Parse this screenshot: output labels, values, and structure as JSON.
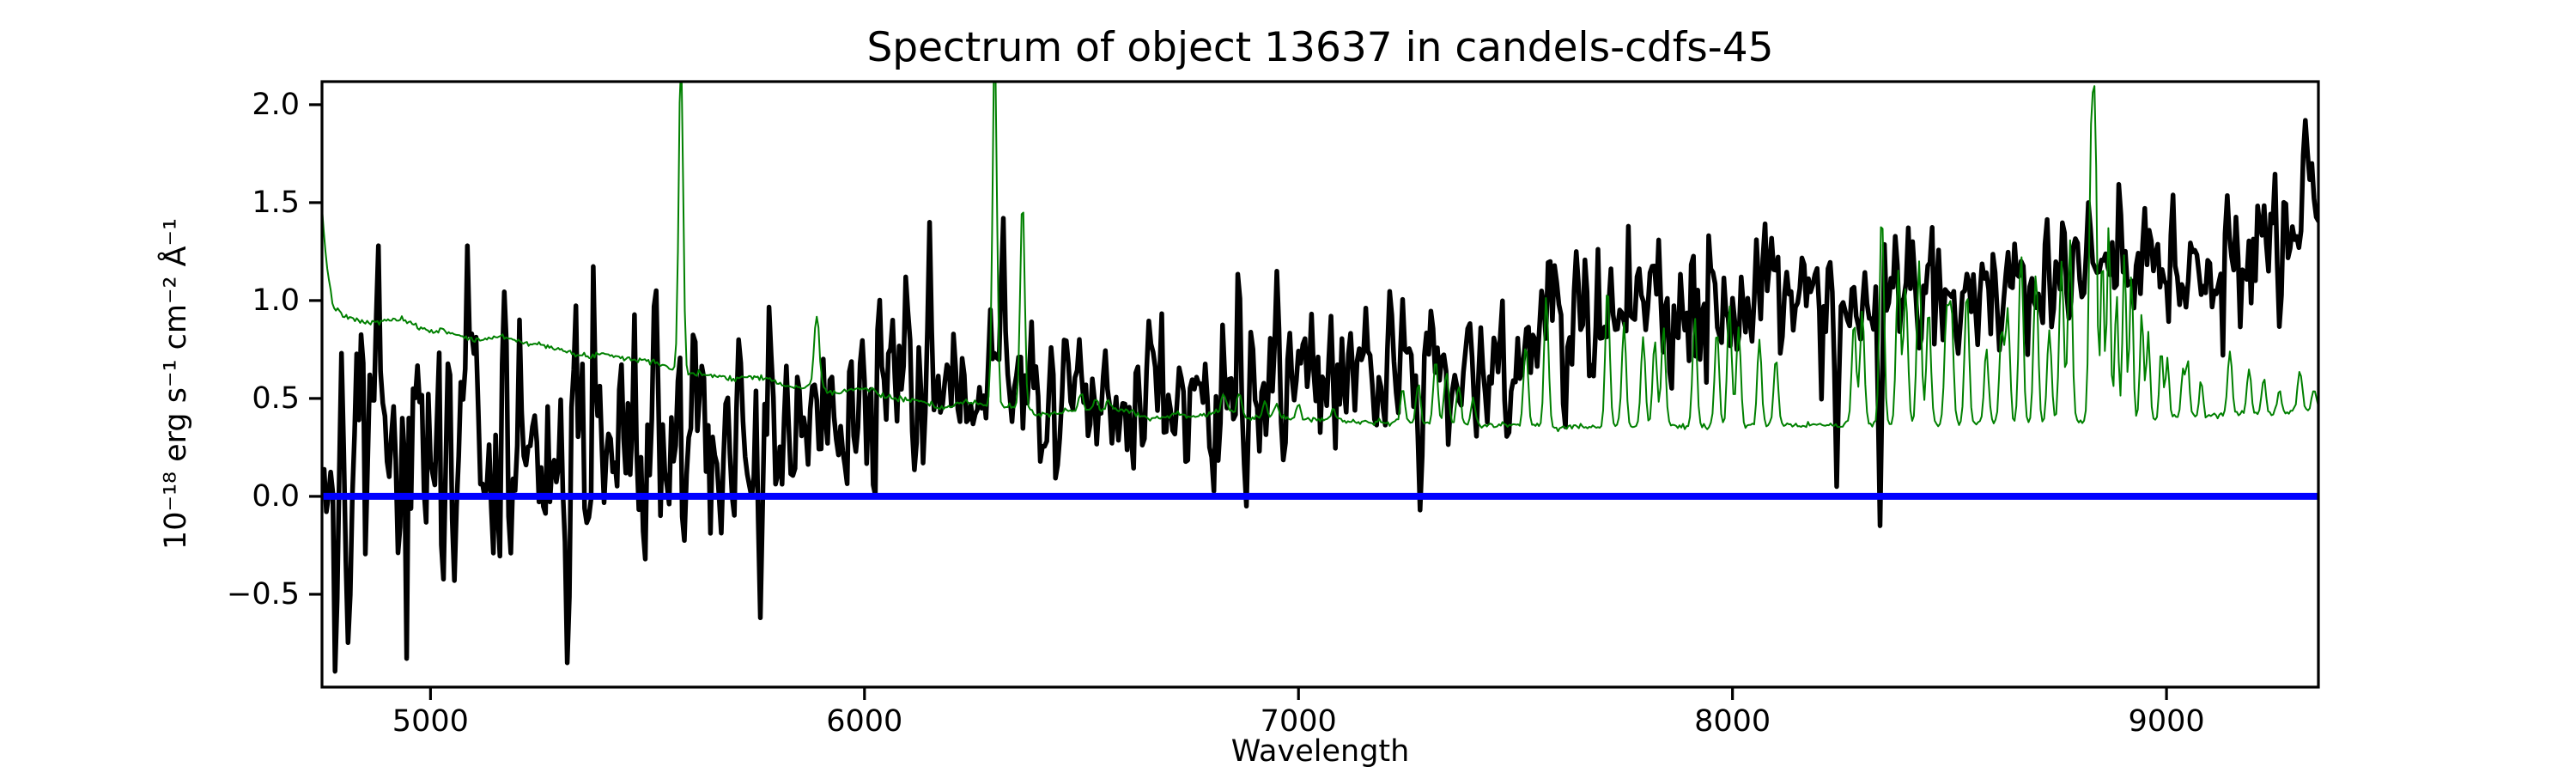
{
  "chart_data": {
    "type": "line",
    "title": "Spectrum of object 13637 in candels-cdfs-45",
    "xlabel": "Wavelength",
    "ylabel": "10⁻¹⁸ erg s⁻¹ cm⁻² Å⁻¹",
    "xlim": [
      4750,
      9350
    ],
    "ylim": [
      -0.974,
      2.118
    ],
    "grid": false,
    "legend": null,
    "background": "#ffffff",
    "frame_color": "#000000",
    "xticks": [
      {
        "value": 5000,
        "label": "5000"
      },
      {
        "value": 6000,
        "label": "6000"
      },
      {
        "value": 7000,
        "label": "7000"
      },
      {
        "value": 8000,
        "label": "8000"
      },
      {
        "value": 9000,
        "label": "9000"
      }
    ],
    "yticks": [
      {
        "value": -0.5,
        "label": "−0.5"
      },
      {
        "value": 0.0,
        "label": "0.0"
      },
      {
        "value": 0.5,
        "label": "0.5"
      },
      {
        "value": 1.0,
        "label": "1.0"
      },
      {
        "value": 1.5,
        "label": "1.5"
      },
      {
        "value": 2.0,
        "label": "2.0"
      }
    ],
    "series": [
      {
        "name": "observed-flux-black",
        "color": "#000000",
        "line_width": 5.5,
        "step_angstrom": 5,
        "model": {
          "kind": "noisy-continuum",
          "seed": 42,
          "continuum": [
            [
              4750,
              0.2
            ],
            [
              4900,
              0.26
            ],
            [
              5100,
              0.24
            ],
            [
              5300,
              0.2
            ],
            [
              5500,
              0.26
            ],
            [
              5700,
              0.33
            ],
            [
              5900,
              0.43
            ],
            [
              6100,
              0.52
            ],
            [
              6300,
              0.5
            ],
            [
              6500,
              0.5
            ],
            [
              6700,
              0.52
            ],
            [
              6900,
              0.5
            ],
            [
              7100,
              0.53
            ],
            [
              7300,
              0.58
            ],
            [
              7500,
              0.7
            ],
            [
              7700,
              0.86
            ],
            [
              7900,
              0.93
            ],
            [
              8050,
              1.0
            ],
            [
              8200,
              1.05
            ],
            [
              8350,
              1.0
            ],
            [
              8500,
              1.05
            ],
            [
              8700,
              1.1
            ],
            [
              8900,
              1.1
            ],
            [
              9100,
              1.16
            ],
            [
              9250,
              1.28
            ],
            [
              9350,
              1.5
            ]
          ],
          "noise_sigma": [
            [
              4750,
              0.4
            ],
            [
              5000,
              0.4
            ],
            [
              5300,
              0.37
            ],
            [
              5600,
              0.3
            ],
            [
              5900,
              0.25
            ],
            [
              6200,
              0.21
            ],
            [
              6600,
              0.19
            ],
            [
              7000,
              0.2
            ],
            [
              7400,
              0.2
            ],
            [
              7800,
              0.21
            ],
            [
              8200,
              0.18
            ],
            [
              8600,
              0.17
            ],
            [
              9000,
              0.17
            ],
            [
              9350,
              0.22
            ]
          ],
          "features": [
            [
              4750,
              0.08,
              3
            ],
            [
              4880,
              1.28,
              4
            ],
            [
              5085,
              1.28,
              4
            ],
            [
              5315,
              -0.85,
              4
            ],
            [
              5520,
              1.05,
              4
            ],
            [
              5760,
              -0.62,
              4
            ],
            [
              6150,
              1.4,
              4
            ],
            [
              6320,
              1.42,
              4
            ],
            [
              6880,
              -0.05,
              4
            ],
            [
              6950,
              1.15,
              4
            ],
            [
              7280,
              -0.07,
              4
            ],
            [
              7640,
              1.25,
              4
            ],
            [
              8240,
              0.05,
              4
            ],
            [
              8340,
              -0.15,
              4
            ],
            [
              8820,
              1.5,
              4
            ],
            [
              9320,
              1.92,
              5
            ],
            [
              9348,
              1.4,
              3
            ]
          ]
        }
      },
      {
        "name": "noise-sky-spectrum-green",
        "color": "#008000",
        "line_width": 2,
        "step_angstrom": 4,
        "model": {
          "kind": "baseline-with-spikes",
          "seed": 7,
          "baseline": [
            [
              4750,
              1.47
            ],
            [
              4762,
              1.18
            ],
            [
              4775,
              0.99
            ],
            [
              4800,
              0.92
            ],
            [
              4850,
              0.9
            ],
            [
              4950,
              0.87
            ],
            [
              5050,
              0.84
            ],
            [
              5150,
              0.8
            ],
            [
              5250,
              0.77
            ],
            [
              5350,
              0.74
            ],
            [
              5450,
              0.7
            ],
            [
              5550,
              0.66
            ],
            [
              5650,
              0.62
            ],
            [
              5750,
              0.59
            ],
            [
              5850,
              0.57
            ],
            [
              5950,
              0.54
            ],
            [
              6050,
              0.51
            ],
            [
              6150,
              0.48
            ],
            [
              6250,
              0.46
            ],
            [
              6400,
              0.44
            ],
            [
              6550,
              0.43
            ],
            [
              6700,
              0.42
            ],
            [
              6850,
              0.41
            ],
            [
              7000,
              0.4
            ],
            [
              7150,
              0.38
            ],
            [
              7300,
              0.37
            ],
            [
              7500,
              0.36
            ],
            [
              7700,
              0.355
            ],
            [
              7900,
              0.355
            ],
            [
              8100,
              0.36
            ],
            [
              8300,
              0.365
            ],
            [
              8500,
              0.37
            ],
            [
              8700,
              0.375
            ],
            [
              8900,
              0.39
            ],
            [
              9100,
              0.41
            ],
            [
              9250,
              0.42
            ],
            [
              9350,
              0.45
            ]
          ],
          "spikes": [
            [
              5577,
              2.3,
              5
            ],
            [
              5890,
              0.93,
              6
            ],
            [
              6300,
              2.3,
              5
            ],
            [
              6364,
              1.52,
              5
            ],
            [
              6499,
              0.52,
              5
            ],
            [
              6533,
              0.5,
              5
            ],
            [
              6562,
              0.48,
              5
            ],
            [
              6828,
              0.5,
              5
            ],
            [
              6864,
              0.52,
              5
            ],
            [
              6923,
              0.48,
              5
            ],
            [
              6949,
              0.47,
              5
            ],
            [
              7000,
              0.46,
              5
            ],
            [
              7080,
              0.44,
              5
            ],
            [
              7240,
              0.55,
              5
            ],
            [
              7276,
              0.58,
              5
            ],
            [
              7316,
              0.7,
              5
            ],
            [
              7341,
              0.64,
              5
            ],
            [
              7369,
              0.56,
              5
            ],
            [
              7402,
              0.5,
              5
            ],
            [
              7524,
              0.78,
              5
            ],
            [
              7571,
              1.02,
              5
            ],
            [
              7712,
              1.08,
              5
            ],
            [
              7750,
              0.88,
              5
            ],
            [
              7794,
              0.82,
              5
            ],
            [
              7821,
              0.8,
              5
            ],
            [
              7841,
              0.86,
              5
            ],
            [
              7913,
              0.92,
              5
            ],
            [
              7964,
              0.85,
              5
            ],
            [
              7993,
              0.98,
              5
            ],
            [
              8014,
              0.86,
              5
            ],
            [
              8062,
              0.8,
              5
            ],
            [
              8100,
              0.7,
              5
            ],
            [
              8280,
              0.9,
              5
            ],
            [
              8299,
              0.95,
              5
            ],
            [
              8344,
              1.45,
              5
            ],
            [
              8382,
              1.15,
              5
            ],
            [
              8399,
              1.05,
              5
            ],
            [
              8430,
              1.2,
              5
            ],
            [
              8452,
              0.95,
              5
            ],
            [
              8493,
              0.9,
              5
            ],
            [
              8504,
              0.95,
              5
            ],
            [
              8540,
              1.05,
              5
            ],
            [
              8585,
              0.75,
              5
            ],
            [
              8620,
              0.85,
              5
            ],
            [
              8634,
              0.95,
              5
            ],
            [
              8665,
              1.25,
              5
            ],
            [
              8699,
              1.15,
              5
            ],
            [
              8730,
              0.85,
              5
            ],
            [
              8758,
              1.2,
              5
            ],
            [
              8778,
              1.3,
              5
            ],
            [
              8827,
              1.88,
              5
            ],
            [
              8836,
              1.7,
              4
            ],
            [
              8852,
              1.25,
              4
            ],
            [
              8867,
              1.4,
              4
            ],
            [
              8885,
              1.05,
              4
            ],
            [
              8903,
              1.25,
              4
            ],
            [
              8919,
              1.15,
              4
            ],
            [
              8943,
              0.95,
              4
            ],
            [
              8958,
              0.85,
              4
            ],
            [
              8988,
              0.75,
              4
            ],
            [
              9002,
              0.7,
              4
            ],
            [
              9038,
              0.65,
              4
            ],
            [
              9049,
              0.7,
              4
            ],
            [
              9080,
              0.6,
              4
            ],
            [
              9146,
              0.75,
              5
            ],
            [
              9190,
              0.65,
              5
            ],
            [
              9224,
              0.6,
              5
            ],
            [
              9260,
              0.55,
              5
            ],
            [
              9307,
              0.65,
              5
            ],
            [
              9340,
              0.55,
              5
            ]
          ]
        }
      },
      {
        "name": "zero-flux-level-blue",
        "color": "#0000ff",
        "line_width": 8,
        "model": {
          "kind": "hline",
          "y": 0
        }
      }
    ]
  }
}
